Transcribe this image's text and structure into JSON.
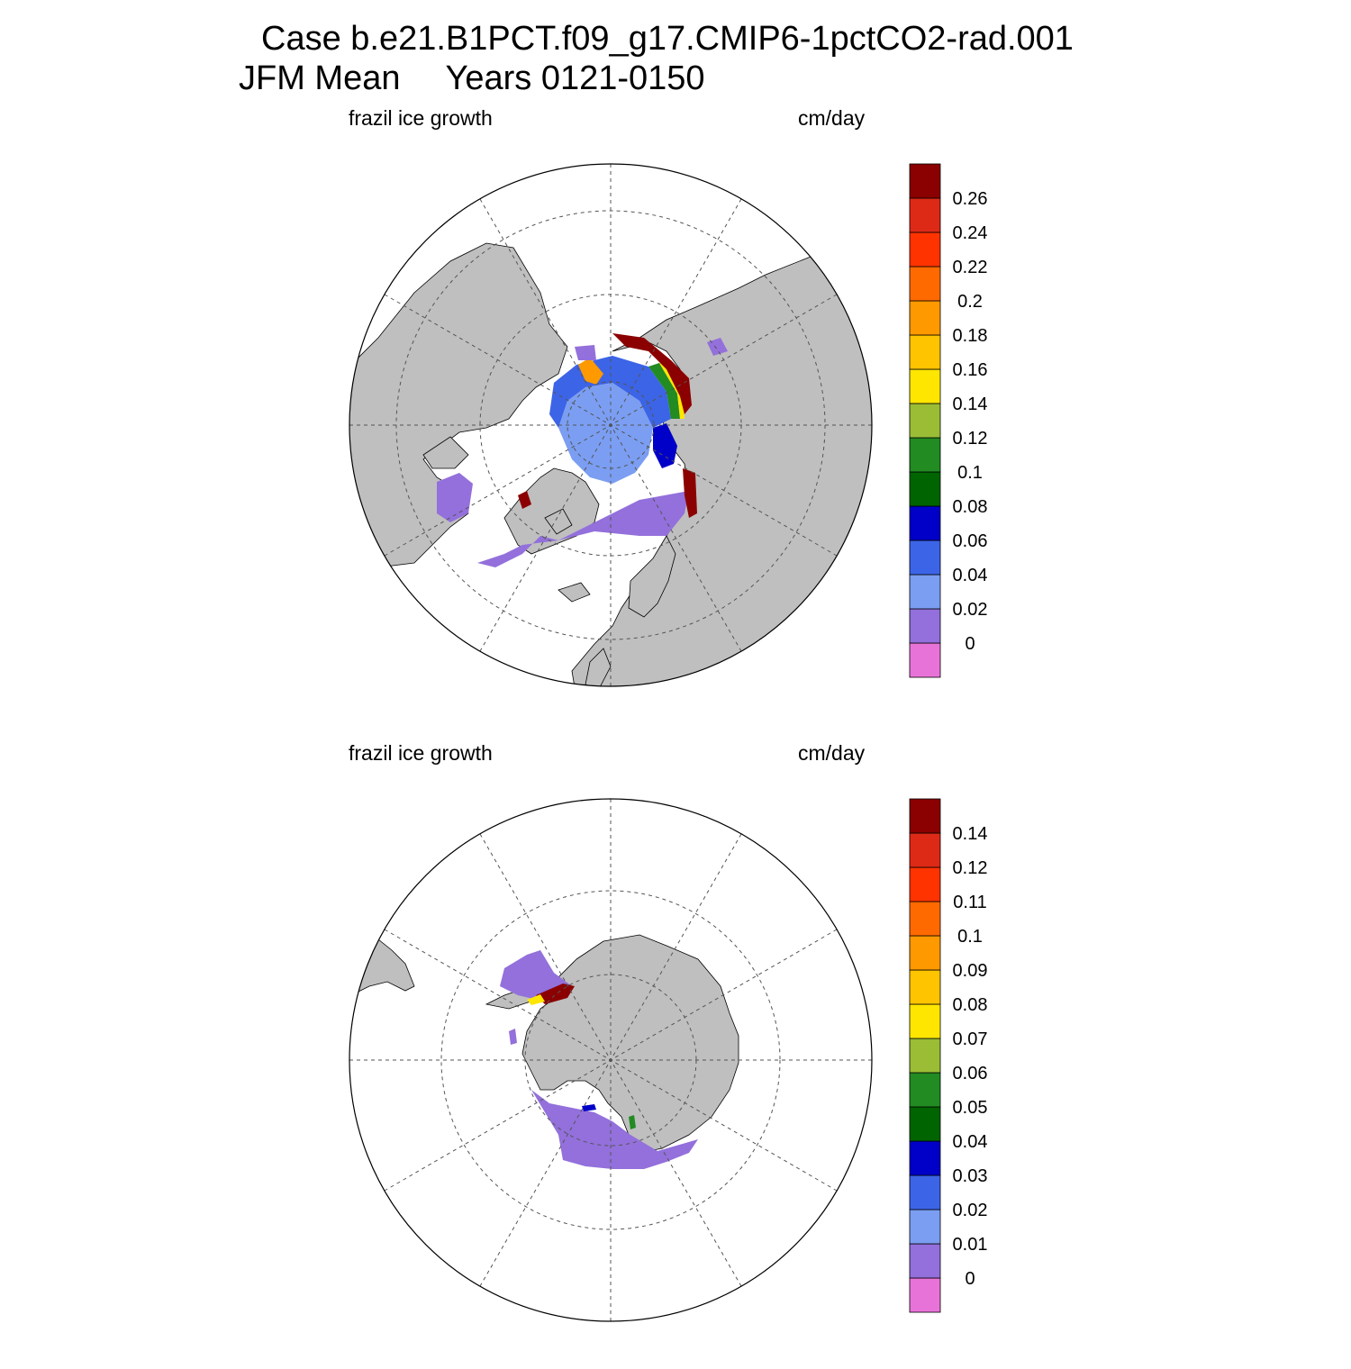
{
  "title_line1": "Case b.e21.B1PCT.f09_g17.CMIP6-1pctCO2-rad.001",
  "title_line2_left": "JFM Mean",
  "title_line2_right": "Years 0121-0150",
  "colors": {
    "land": "#bfbfbf",
    "palette": [
      "#e873d8",
      "#9370db",
      "#7b9ef2",
      "#3c64e6",
      "#0000c8",
      "#006400",
      "#228b22",
      "#9abd35",
      "#ffe600",
      "#ffc400",
      "#ff9900",
      "#ff6a00",
      "#ff3300",
      "#dd2a16",
      "#8b0000"
    ]
  },
  "panels": [
    {
      "id": "north",
      "left_label": "frazil ice growth",
      "right_label": "cm/day",
      "colorbar_labels": [
        "0.26",
        "0.24",
        "0.22",
        "0.2",
        "0.18",
        "0.16",
        "0.14",
        "0.12",
        "0.1",
        "0.08",
        "0.06",
        "0.04",
        "0.02",
        "0"
      ]
    },
    {
      "id": "south",
      "left_label": "frazil ice growth",
      "right_label": "cm/day",
      "colorbar_labels": [
        "0.14",
        "0.12",
        "0.11",
        "0.1",
        "0.09",
        "0.08",
        "0.07",
        "0.06",
        "0.05",
        "0.04",
        "0.03",
        "0.02",
        "0.01",
        "0"
      ]
    }
  ]
}
